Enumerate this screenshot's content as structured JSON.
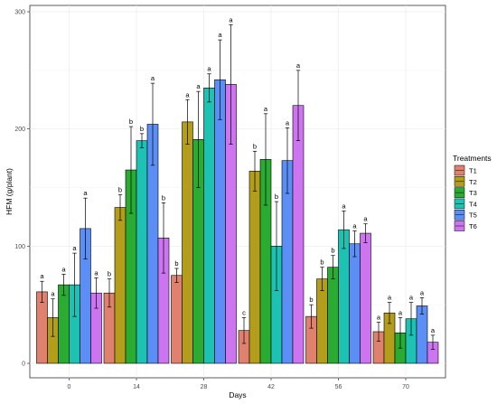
{
  "chart_data": {
    "type": "bar",
    "xlabel": "Days",
    "ylabel": "HFM (g/plant)",
    "categories": [
      "0",
      "14",
      "28",
      "42",
      "56",
      "70"
    ],
    "ylim": [
      0,
      300
    ],
    "yticks": [
      0,
      100,
      200,
      300
    ],
    "grid": true,
    "legend": {
      "title": "Treatments",
      "placement": "right"
    },
    "series": [
      {
        "name": "T1",
        "color": "#e0806f",
        "values": [
          61,
          60,
          75,
          28,
          40,
          27
        ],
        "errors": [
          9,
          12,
          6,
          11,
          10,
          8
        ],
        "letters": [
          "a",
          "b",
          "b",
          "c",
          "b",
          "a"
        ]
      },
      {
        "name": "T2",
        "color": "#b39d1a",
        "values": [
          39,
          133,
          206,
          164,
          72,
          43
        ],
        "errors": [
          16,
          11,
          19,
          17,
          10,
          9
        ],
        "letters": [
          "a",
          "b",
          "a",
          "b",
          "b",
          "a"
        ]
      },
      {
        "name": "T3",
        "color": "#2aac33",
        "values": [
          67,
          165,
          191,
          174,
          82,
          26
        ],
        "errors": [
          9,
          37,
          41,
          39,
          10,
          13
        ],
        "letters": [
          "a",
          "b",
          "a",
          "a",
          "b",
          "a"
        ]
      },
      {
        "name": "T4",
        "color": "#1ec2b2",
        "values": [
          67,
          190,
          235,
          100,
          114,
          38
        ],
        "errors": [
          27,
          6,
          12,
          38,
          16,
          14
        ],
        "letters": [
          "a",
          "b",
          "a",
          "b",
          "a",
          "a"
        ]
      },
      {
        "name": "T5",
        "color": "#5c8ff5",
        "values": [
          115,
          204,
          242,
          173,
          102,
          49
        ],
        "errors": [
          26,
          35,
          34,
          28,
          11,
          7
        ],
        "letters": [
          "a",
          "a",
          "a",
          "a",
          "a",
          "a"
        ]
      },
      {
        "name": "T6",
        "color": "#cd75f0",
        "values": [
          60,
          107,
          238,
          220,
          111,
          18
        ],
        "errors": [
          13,
          30,
          51,
          30,
          8,
          6
        ],
        "letters": [
          "a",
          "b",
          "a",
          "a",
          "a",
          "a"
        ]
      }
    ]
  }
}
